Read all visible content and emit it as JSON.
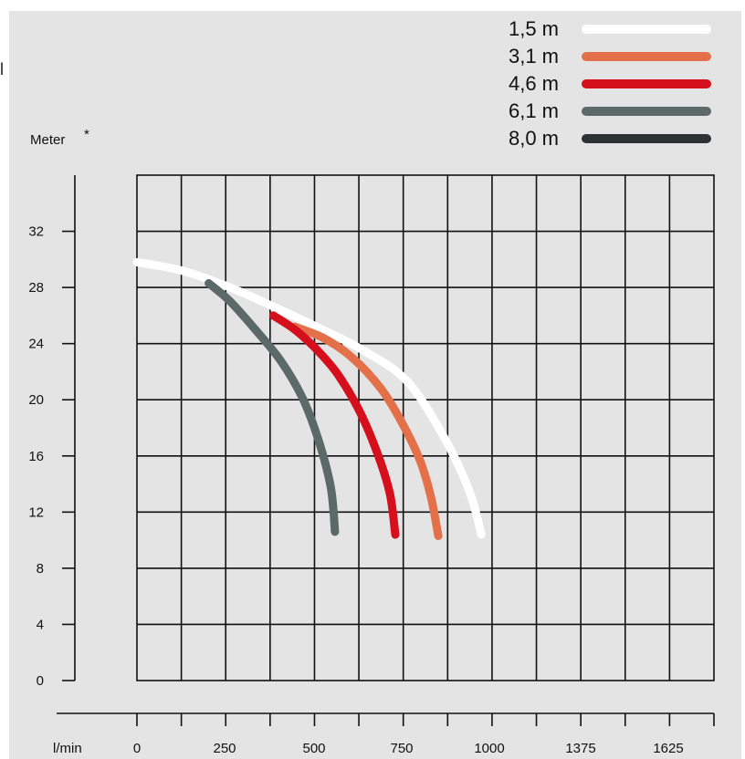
{
  "stray_mark": "l",
  "chart_data": {
    "type": "line",
    "title": "",
    "ylabel": "Meter",
    "ylabel_marker": "*",
    "xlabel": "l/min",
    "ylim": [
      0,
      32
    ],
    "y_ticks": [
      "32",
      "28",
      "24",
      "20",
      "16",
      "12",
      "8",
      "4",
      "0"
    ],
    "x_ticks": [
      "0",
      "250",
      "500",
      "750",
      "1000",
      "1375",
      "1625"
    ],
    "grid": true,
    "legend_position": "top-right",
    "colors": {
      "background": "#e4e4e4",
      "grid": "#111111"
    },
    "series": [
      {
        "name": "1,5 m",
        "color": "#ffffff",
        "x": [
          0,
          125,
          250,
          375,
          500,
          625,
          750,
          850,
          925,
          960
        ],
        "y": [
          29.8,
          29.2,
          28.1,
          26.7,
          25.2,
          23.6,
          21.4,
          17.6,
          13.6,
          10.4
        ]
      },
      {
        "name": "3,1 m",
        "color": "#e4704a",
        "x": [
          440,
          520,
          600,
          680,
          740,
          790,
          820,
          840
        ],
        "y": [
          25.2,
          24.4,
          23.0,
          20.8,
          18.3,
          15.6,
          13.0,
          10.3
        ]
      },
      {
        "name": "4,6 m",
        "color": "#d50f1c",
        "x": [
          380,
          440,
          500,
          560,
          620,
          670,
          705,
          720
        ],
        "y": [
          26.0,
          25.0,
          23.6,
          21.8,
          19.2,
          16.2,
          13.3,
          10.4
        ]
      },
      {
        "name": "6,1 m",
        "color": "#5b6a67",
        "x": [
          200,
          260,
          330,
          400,
          460,
          505,
          540,
          552
        ],
        "y": [
          28.3,
          27.0,
          25.0,
          22.8,
          20.2,
          17.2,
          13.8,
          10.6
        ]
      },
      {
        "name": "8,0 m",
        "color": "#2c3332",
        "x": [],
        "y": []
      }
    ]
  }
}
